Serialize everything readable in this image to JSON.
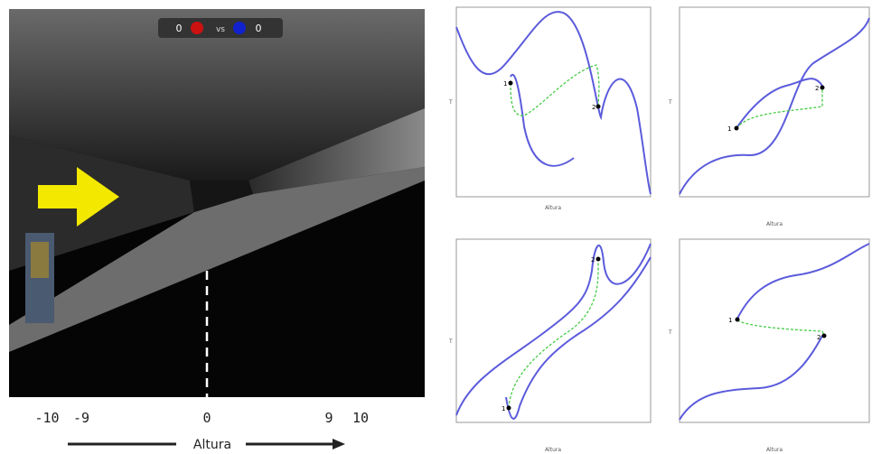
{
  "scoreboard": {
    "left": "0",
    "separator": "vs",
    "right": "0"
  },
  "axis": {
    "ticks": [
      "-10",
      "-9",
      "0",
      "9",
      "10"
    ],
    "label": "Altura"
  },
  "plots": [
    {
      "x_label": "Altura",
      "y_label": "T",
      "points": [
        "1",
        "2"
      ]
    },
    {
      "x_label": "Altura",
      "y_label": "T",
      "points": [
        "1",
        "2"
      ]
    },
    {
      "x_label": "Altura",
      "y_label": "T",
      "points": [
        "1",
        "2"
      ]
    },
    {
      "x_label": "Altura",
      "y_label": "T",
      "points": [
        "1",
        "2"
      ]
    }
  ]
}
